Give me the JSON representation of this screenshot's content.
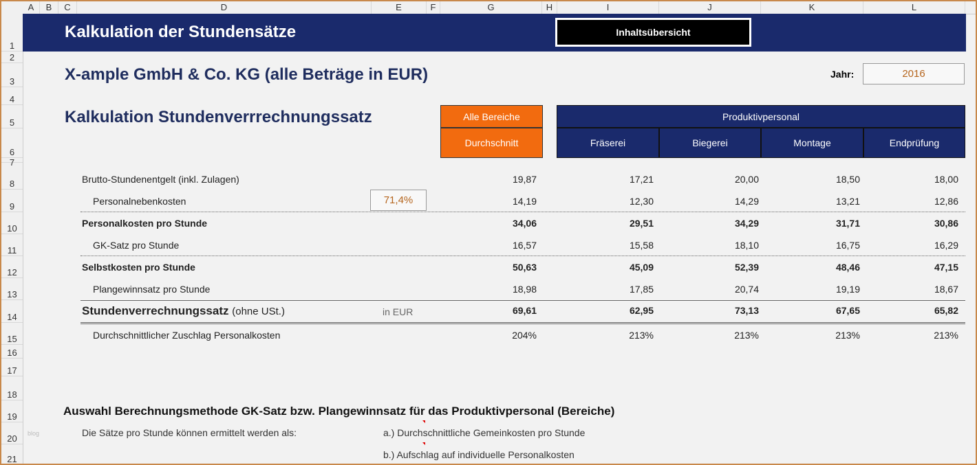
{
  "columns": [
    "A",
    "B",
    "C",
    "D",
    "E",
    "F",
    "G",
    "H",
    "I",
    "J",
    "K",
    "L"
  ],
  "rows": [
    "1",
    "2",
    "3",
    "4",
    "5",
    "6",
    "7",
    "8",
    "9",
    "10",
    "11",
    "12",
    "13",
    "14",
    "15",
    "16",
    "17",
    "18",
    "19",
    "20",
    "21"
  ],
  "title": "Kalkulation der Stundensätze",
  "toc_button": "Inhaltsübersicht",
  "company": "X-ample GmbH & Co. KG (alle Beträge in EUR)",
  "year_label": "Jahr:",
  "year": "2016",
  "section_title": "Kalkulation Stundenverrrechnungssatz",
  "all_areas": "Alle Bereiche",
  "average": "Durchschnitt",
  "productive": "Produktivpersonal",
  "areas": [
    "Fräserei",
    "Biegerei",
    "Montage",
    "Endprüfung"
  ],
  "table": [
    {
      "label": "Brutto-Stundenentgelt (inkl. Zulagen)",
      "indent": false,
      "bold": false,
      "values": [
        "19,87",
        "17,21",
        "20,00",
        "18,50",
        "18,00"
      ]
    },
    {
      "label": "Personalnebenkosten",
      "indent": true,
      "bold": false,
      "extra": "71,4%",
      "values": [
        "14,19",
        "12,30",
        "14,29",
        "13,21",
        "12,86"
      ]
    },
    {
      "label": "Personalkosten pro Stunde",
      "indent": false,
      "bold": true,
      "values": [
        "34,06",
        "29,51",
        "34,29",
        "31,71",
        "30,86"
      ]
    },
    {
      "label": "GK-Satz pro Stunde",
      "indent": true,
      "bold": false,
      "values": [
        "16,57",
        "15,58",
        "18,10",
        "16,75",
        "16,29"
      ]
    },
    {
      "label": "Selbstkosten pro Stunde",
      "indent": false,
      "bold": true,
      "values": [
        "50,63",
        "45,09",
        "52,39",
        "48,46",
        "47,15"
      ]
    },
    {
      "label": "Plangewinnsatz pro Stunde",
      "indent": true,
      "bold": false,
      "values": [
        "18,98",
        "17,85",
        "20,74",
        "19,19",
        "18,67"
      ]
    },
    {
      "label": "Stundenverrechnungssatz",
      "suffix": "(ohne USt.)",
      "unit": "in EUR",
      "indent": false,
      "bold": true,
      "values": [
        "69,61",
        "62,95",
        "73,13",
        "67,65",
        "65,82"
      ]
    },
    {
      "label": "Durchschnittlicher Zuschlag Personalkosten",
      "indent": true,
      "bold": false,
      "values": [
        "204%",
        "213%",
        "213%",
        "213%",
        "213%"
      ]
    }
  ],
  "method_title": "Auswahl Berechnungsmethode GK-Satz bzw. Plangewinnsatz für das Produktivpersonal (Bereiche)",
  "method_intro": "Die Sätze pro Stunde können ermittelt werden als:",
  "option_a": "a.) Durchschnittliche Gemeinkosten pro Stunde",
  "option_b": "b.) Aufschlag auf individuelle Personalkosten",
  "watermark": "blog"
}
